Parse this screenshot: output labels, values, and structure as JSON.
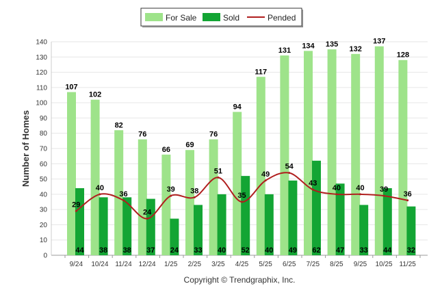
{
  "chart_data": {
    "type": "bar",
    "categories": [
      "9/24",
      "10/24",
      "11/24",
      "12/24",
      "1/25",
      "2/25",
      "3/25",
      "4/25",
      "5/25",
      "6/25",
      "7/25",
      "8/25",
      "9/25",
      "10/25",
      "11/25"
    ],
    "series": [
      {
        "name": "For Sale",
        "type": "bar",
        "color": "#9ee38a",
        "values": [
          107,
          102,
          82,
          76,
          66,
          69,
          76,
          94,
          117,
          131,
          134,
          135,
          132,
          137,
          128
        ]
      },
      {
        "name": "Sold",
        "type": "bar",
        "color": "#13a534",
        "values": [
          44,
          38,
          38,
          37,
          24,
          33,
          40,
          52,
          40,
          49,
          62,
          47,
          33,
          44,
          32
        ]
      },
      {
        "name": "Pended",
        "type": "line",
        "color": "#b01e1e",
        "values": [
          29,
          40,
          36,
          24,
          39,
          38,
          51,
          35,
          49,
          54,
          43,
          40,
          40,
          39,
          36
        ]
      }
    ],
    "xlabel": "",
    "ylabel": "Number of Homes",
    "ylim": [
      0,
      140
    ],
    "yticks": [
      0,
      10,
      20,
      30,
      40,
      50,
      60,
      70,
      80,
      90,
      100,
      110,
      120,
      130,
      140
    ],
    "legend_position": "top-center",
    "grid": true
  },
  "legend": {
    "for_sale": "For Sale",
    "sold": "Sold",
    "pended": "Pended"
  },
  "copyright": "Copyright © Trendgraphix, Inc."
}
